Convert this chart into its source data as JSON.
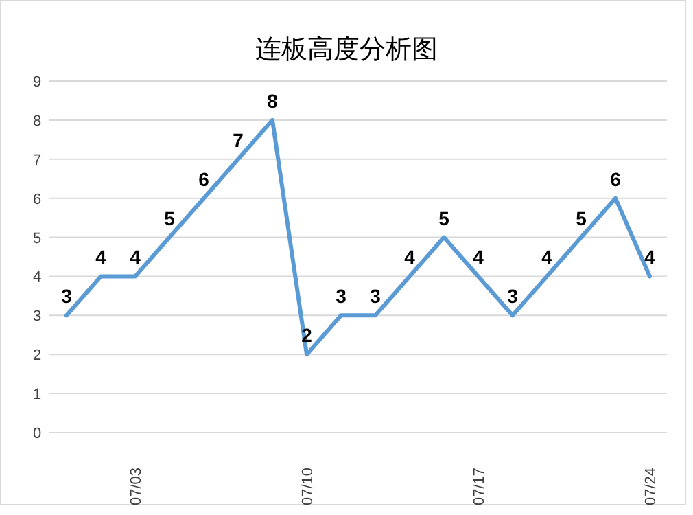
{
  "chart_data": {
    "type": "line",
    "title": "连板高度分析图",
    "categories": [
      null,
      null,
      "07/03",
      null,
      null,
      null,
      null,
      "07/10",
      null,
      null,
      null,
      null,
      "07/17",
      null,
      null,
      null,
      null,
      "07/24"
    ],
    "series": [
      {
        "color": "#5b9bd5",
        "values": [
          3,
          4,
          4,
          5,
          6,
          7,
          8,
          2,
          3,
          3,
          4,
          5,
          4,
          3,
          4,
          5,
          6,
          4
        ]
      }
    ],
    "ylim": [
      0,
      9
    ],
    "yticks": [
      0,
      1,
      2,
      3,
      4,
      5,
      6,
      7,
      8,
      9
    ],
    "grid": "y",
    "data_labels": true,
    "marker": "none",
    "line_style": "solid"
  }
}
